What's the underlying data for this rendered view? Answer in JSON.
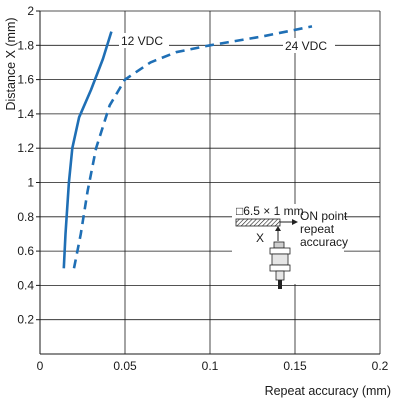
{
  "chart_data": {
    "type": "line",
    "xlabel": "Repeat accuracy (mm)",
    "ylabel": "Distance X (mm)",
    "xlim": [
      0,
      0.2
    ],
    "ylim": [
      0,
      2.0
    ],
    "xticks": [
      0,
      0.05,
      0.1,
      0.15,
      0.2
    ],
    "xtick_labels": [
      "0",
      "0.05",
      "0.1",
      "0.15",
      "0.2"
    ],
    "yticks": [
      0.2,
      0.4,
      0.6,
      0.8,
      1.0,
      1.2,
      1.4,
      1.6,
      1.8,
      2.0
    ],
    "ytick_labels": [
      "0.2",
      "0.4",
      "0.6",
      "0.8",
      "1",
      "1.2",
      "1.4",
      "1.6",
      "1.8",
      "2"
    ],
    "grid": true,
    "series": [
      {
        "name": "12 VDC",
        "style": "solid",
        "color": "#1f6fb5",
        "points": [
          [
            0.014,
            0.5
          ],
          [
            0.015,
            0.7
          ],
          [
            0.017,
            1.0
          ],
          [
            0.019,
            1.2
          ],
          [
            0.023,
            1.38
          ],
          [
            0.03,
            1.54
          ],
          [
            0.037,
            1.72
          ],
          [
            0.042,
            1.88
          ]
        ]
      },
      {
        "name": "24 VDC",
        "style": "dashed",
        "color": "#1f6fb5",
        "points": [
          [
            0.02,
            0.5
          ],
          [
            0.024,
            0.7
          ],
          [
            0.028,
            0.95
          ],
          [
            0.033,
            1.2
          ],
          [
            0.041,
            1.45
          ],
          [
            0.05,
            1.6
          ],
          [
            0.065,
            1.7
          ],
          [
            0.08,
            1.76
          ],
          [
            0.1,
            1.8
          ],
          [
            0.13,
            1.85
          ],
          [
            0.16,
            1.91
          ]
        ]
      }
    ],
    "annotations": {
      "label_12v": "12 VDC",
      "label_24v": "24 VDC",
      "target_size": "□6.5 × 1 mm",
      "x_marker": "X",
      "on_point_lines": [
        "ON point",
        "repeat",
        "accuracy"
      ]
    }
  }
}
